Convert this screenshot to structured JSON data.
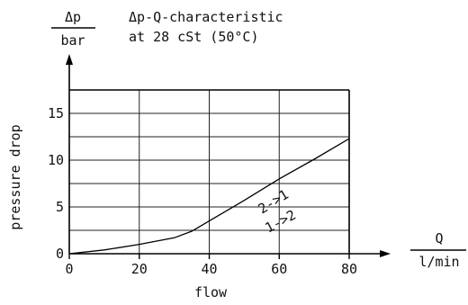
{
  "chart_data": {
    "type": "line",
    "title": "Δp-Q-characteristic",
    "subtitle": "at 28 cSt (50°C)",
    "ylabel": "pressure drop",
    "xlabel": "flow",
    "y_unit_top": "Δp",
    "y_unit_bottom": "bar",
    "x_unit_top": "Q",
    "x_unit_bottom": "l/min",
    "xlim": [
      0,
      80
    ],
    "ylim": [
      0,
      17.5
    ],
    "x_ticks": [
      "0",
      "20",
      "40",
      "60",
      "80"
    ],
    "y_ticks": [
      "0",
      "5",
      "10",
      "15"
    ],
    "grid": true,
    "series": [
      {
        "x": [
          0,
          10,
          20,
          30,
          35,
          40,
          50,
          60,
          70,
          80
        ],
        "y": [
          0,
          0.4,
          1.0,
          1.7,
          2.4,
          3.5,
          5.7,
          8.0,
          10.1,
          12.3
        ]
      }
    ],
    "annotations": [
      "2->1",
      "1->2"
    ]
  }
}
